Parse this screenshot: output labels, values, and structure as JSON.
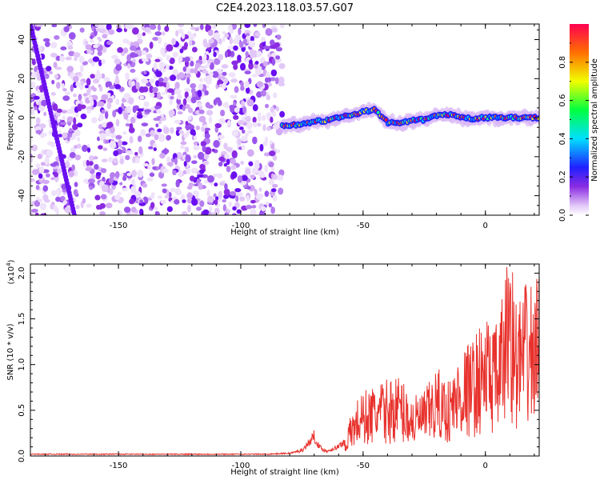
{
  "title": "C2E4.2023.118.03.57.G07",
  "chart_data": [
    {
      "type": "heatmap",
      "xlabel": "Height of straight line (km)",
      "ylabel": "Frequency (Hz)",
      "xlim": [
        -186,
        22
      ],
      "ylim": [
        -50,
        48
      ],
      "x_ticks": [
        -150,
        -100,
        -50,
        0
      ],
      "y_ticks": [
        -40,
        -20,
        0,
        20,
        40
      ],
      "colorbar": {
        "label": "Normalized spectral amplitude",
        "range": [
          0,
          1
        ],
        "ticks": [
          "0.0",
          "0.2",
          "0.4",
          "0.6",
          "0.8"
        ],
        "colormap": "rainbow"
      },
      "features": {
        "noise_region_x": [
          -186,
          -83
        ],
        "diagonal_streak": {
          "x": [
            -186,
            -168
          ],
          "y": [
            48,
            -50
          ]
        },
        "signal_track": {
          "x": [
            -83,
            -75,
            -70,
            -65,
            -60,
            -55,
            -50,
            -45,
            -40,
            -35,
            -30,
            -25,
            -20,
            -15,
            -10,
            -5,
            0,
            5,
            10,
            15,
            20,
            22
          ],
          "y": [
            -4,
            -3.5,
            -2,
            -1.5,
            0,
            1.5,
            3,
            4,
            -2.5,
            -3,
            -1.5,
            -1,
            1,
            1.5,
            0,
            -0.5,
            0,
            0,
            0,
            0,
            0,
            0
          ]
        }
      }
    },
    {
      "type": "line",
      "xlabel": "Height of straight line (km)",
      "ylabel": "SNR (10 * v/v)",
      "multiplier": "(x10",
      "multiplier_exp": "4",
      "multiplier_close": ")",
      "xlim": [
        -186,
        22
      ],
      "ylim": [
        0,
        2.1
      ],
      "x_ticks": [
        -150,
        -100,
        -50,
        0
      ],
      "y_ticks": [
        "0.0",
        "0.5",
        "1.0",
        "1.5",
        "2.0"
      ],
      "color": "#e8322d",
      "series": [
        {
          "x": [
            -186,
            -160,
            -140,
            -120,
            -100,
            -90,
            -80,
            -75,
            -72,
            -70,
            -68,
            -65,
            -60,
            -57,
            -55,
            -52,
            -50,
            -45,
            -40,
            -35,
            -30,
            -25,
            -20,
            -15,
            -10,
            -5,
            0,
            5,
            8,
            10,
            12,
            15,
            18,
            20,
            22
          ],
          "y": [
            0.02,
            0.02,
            0.02,
            0.02,
            0.02,
            0.02,
            0.03,
            0.06,
            0.15,
            0.22,
            0.1,
            0.05,
            0.1,
            0.18,
            0.35,
            0.5,
            0.55,
            0.6,
            0.65,
            0.7,
            0.5,
            0.55,
            0.75,
            0.65,
            0.9,
            1.0,
            1.2,
            1.1,
            1.5,
            2.1,
            1.3,
            1.4,
            1.5,
            1.45,
            1.6
          ]
        }
      ]
    }
  ]
}
